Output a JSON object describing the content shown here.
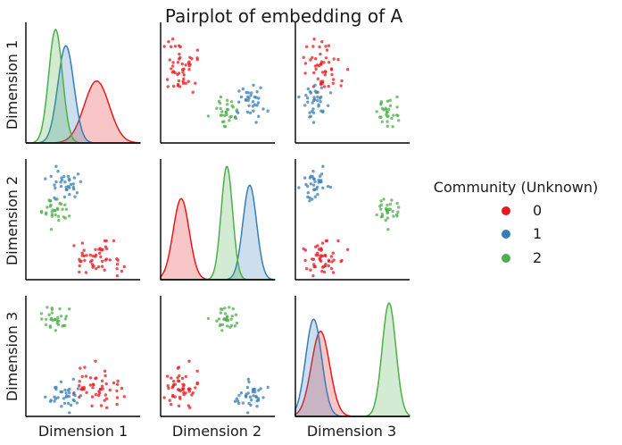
{
  "chart_data": {
    "type": "pairplot",
    "title": "Pairplot of embedding of A",
    "variables": [
      "Dimension 1",
      "Dimension 2",
      "Dimension 3"
    ],
    "diagonal": "kde",
    "offdiagonal": "scatter",
    "legend": {
      "title": "Community (Unknown)",
      "placement": "right",
      "entries": [
        "0",
        "1",
        "2"
      ]
    },
    "colors": {
      "0": "#e41a1c",
      "1": "#377eb8",
      "2": "#4daf4a"
    },
    "communities": [
      {
        "label": "0",
        "mean": [
          0.62,
          0.18,
          0.22
        ],
        "sd": [
          0.11,
          0.07,
          0.08
        ],
        "n": 50
      },
      {
        "label": "1",
        "mean": [
          0.35,
          0.78,
          0.16
        ],
        "sd": [
          0.07,
          0.06,
          0.07
        ],
        "n": 35
      },
      {
        "label": "2",
        "mean": [
          0.26,
          0.58,
          0.82
        ],
        "sd": [
          0.06,
          0.05,
          0.06
        ],
        "n": 30
      }
    ]
  }
}
